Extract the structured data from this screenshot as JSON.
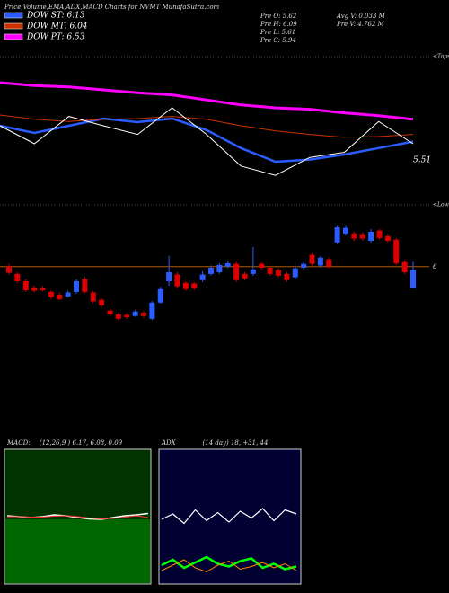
{
  "title": "Price,Volume,EMA,ADX,MACD Charts for NVMT MunafaSutra.com",
  "info": [
    "Pre O: 5.62",
    "Pre H: 6.09",
    "Pre L: 5.61",
    "Pre C: 5.94",
    "Avg V: 0.033 M",
    "Pre V: 4.762 M"
  ],
  "chart_data": [
    {
      "type": "line",
      "ylim": [
        5.2,
        7.2
      ],
      "annotations": [
        "<Tops",
        "<Lows",
        "5.51"
      ],
      "series": [
        {
          "name": "DOW ST: 6.13",
          "color": "#2a5cff",
          "width": 2.5,
          "values": [
            6.2,
            6.1,
            6.2,
            6.3,
            6.25,
            6.3,
            6.14,
            5.89,
            5.7,
            5.73,
            5.8,
            5.89,
            5.98
          ]
        },
        {
          "name": "DOW MT: 6.04",
          "color": "#cc3300",
          "width": 1,
          "values": [
            6.35,
            6.29,
            6.26,
            6.29,
            6.3,
            6.33,
            6.29,
            6.2,
            6.13,
            6.08,
            6.04,
            6.05,
            6.08
          ]
        },
        {
          "name": "DOW PT: 6.53",
          "color": "#ff00ff",
          "width": 3,
          "values": [
            6.8,
            6.76,
            6.74,
            6.7,
            6.66,
            6.63,
            6.56,
            6.49,
            6.45,
            6.43,
            6.38,
            6.34,
            6.29
          ]
        },
        {
          "color": "#ffffff",
          "width": 1,
          "values": [
            6.2,
            5.95,
            6.33,
            6.2,
            6.08,
            6.45,
            6.08,
            5.64,
            5.51,
            5.76,
            5.83,
            6.26,
            5.95
          ]
        }
      ]
    },
    {
      "type": "candlestick",
      "ylim": [
        3.1,
        7.1
      ],
      "yticks": [
        6
      ],
      "grid": true,
      "up_color": "#2a5cff",
      "down_color": "#dd0000",
      "open": [
        6.0,
        5.87,
        5.74,
        5.63,
        5.62,
        5.55,
        5.5,
        5.47,
        5.55,
        5.78,
        5.54,
        5.41,
        5.22,
        5.15,
        5.14,
        5.12,
        5.18,
        5.07,
        5.36,
        5.74,
        5.86,
        5.71,
        5.7,
        5.76,
        5.87,
        5.9,
        6.0,
        6.05,
        5.87,
        5.87,
        6.05,
        5.98,
        5.94,
        5.87,
        5.81,
        5.98,
        6.21,
        6.02,
        6.13,
        6.43,
        6.59,
        6.59,
        6.58,
        6.46,
        6.64,
        6.54,
        6.48,
        6.08,
        5.62
      ],
      "high": [
        6.05,
        5.9,
        5.78,
        5.66,
        5.65,
        5.58,
        5.54,
        5.57,
        5.78,
        5.82,
        5.57,
        5.44,
        5.25,
        5.18,
        5.17,
        5.23,
        5.21,
        5.39,
        5.64,
        6.19,
        5.9,
        5.74,
        5.73,
        5.92,
        6.02,
        6.06,
        6.1,
        6.08,
        5.9,
        6.35,
        6.08,
        6.01,
        5.97,
        5.9,
        6.0,
        6.08,
        6.24,
        6.19,
        6.16,
        6.74,
        6.74,
        6.62,
        6.61,
        6.67,
        6.67,
        6.58,
        6.51,
        6.11,
        6.09
      ],
      "low": [
        5.86,
        5.71,
        5.55,
        5.54,
        5.56,
        5.43,
        5.4,
        5.45,
        5.52,
        5.52,
        5.35,
        5.28,
        5.12,
        5.04,
        5.07,
        5.1,
        5.09,
        5.05,
        5.34,
        5.66,
        5.62,
        5.57,
        5.58,
        5.73,
        5.84,
        5.87,
        5.97,
        5.73,
        5.76,
        5.84,
        5.95,
        5.84,
        5.81,
        5.73,
        5.78,
        5.95,
        6.02,
        5.98,
        5.97,
        6.4,
        6.56,
        6.46,
        6.46,
        6.43,
        6.48,
        6.43,
        6.03,
        5.87,
        5.61
      ],
      "close": [
        5.89,
        5.74,
        5.58,
        5.57,
        5.58,
        5.46,
        5.42,
        5.54,
        5.74,
        5.55,
        5.38,
        5.31,
        5.15,
        5.07,
        5.1,
        5.2,
        5.12,
        5.36,
        5.6,
        5.9,
        5.65,
        5.6,
        5.62,
        5.86,
        5.98,
        6.03,
        6.06,
        5.76,
        5.79,
        5.95,
        5.98,
        5.87,
        5.84,
        5.76,
        5.97,
        6.05,
        6.05,
        6.16,
        6.0,
        6.7,
        6.69,
        6.5,
        6.5,
        6.62,
        6.51,
        6.46,
        6.06,
        5.9,
        5.94
      ]
    },
    {
      "type": "line",
      "title": "MACD:",
      "subtitle": "(12,26,9 ) 6.17, 6.08, 0.09",
      "ylim": [
        4.6,
        7.6
      ],
      "series": [
        {
          "color": "#ffffff",
          "width": 1.5,
          "values": [
            6.12,
            6.1,
            6.08,
            6.1,
            6.14,
            6.12,
            6.08,
            6.05,
            6.04,
            6.08,
            6.12,
            6.14,
            6.17
          ]
        },
        {
          "color": "#ff3333",
          "width": 1,
          "values": [
            6.1,
            6.1,
            6.09,
            6.09,
            6.11,
            6.12,
            6.1,
            6.07,
            6.05,
            6.06,
            6.09,
            6.12,
            6.08
          ]
        }
      ]
    },
    {
      "type": "line",
      "title": "ADX",
      "subtitle": "(14 day) 18, +31, 44",
      "ylim": [
        0,
        100
      ],
      "series": [
        {
          "color": "#ffffff",
          "width": 1.2,
          "values": [
            48,
            52,
            45,
            55,
            47,
            53,
            46,
            54,
            49,
            56,
            47,
            55,
            52
          ]
        },
        {
          "color": "#00ff00",
          "width": 2.5,
          "values": [
            14,
            18,
            12,
            16,
            20,
            15,
            13,
            17,
            19,
            12,
            15,
            11,
            13
          ]
        },
        {
          "color": "#ff8800",
          "width": 1,
          "values": [
            10,
            14,
            18,
            12,
            9,
            14,
            17,
            11,
            13,
            16,
            12,
            15,
            10
          ]
        }
      ]
    }
  ]
}
